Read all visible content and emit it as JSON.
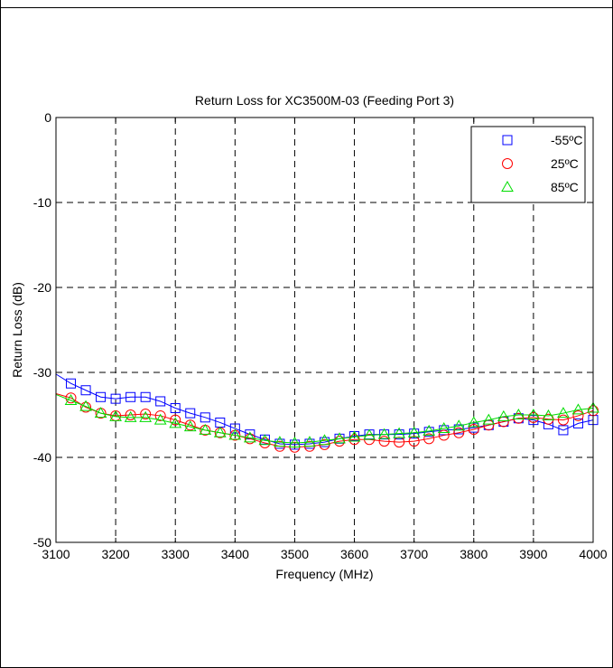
{
  "chart_data": {
    "type": "line",
    "title": "Return Loss for XC3500M-03 (Feeding Port 3)",
    "xlabel": "Frequency (MHz)",
    "ylabel": "Return Loss (dB)",
    "xlim": [
      3100,
      4000
    ],
    "ylim": [
      -50,
      0
    ],
    "xticks": [
      3100,
      3200,
      3300,
      3400,
      3500,
      3600,
      3700,
      3800,
      3900,
      4000
    ],
    "yticks": [
      0,
      -10,
      -20,
      -30,
      -40,
      -50
    ],
    "grid": true,
    "legend_position": "top-right",
    "series": [
      {
        "name": "-55ºC",
        "color": "#0000ff",
        "marker": "square",
        "x": [
          3100,
          3125,
          3150,
          3175,
          3200,
          3225,
          3250,
          3275,
          3300,
          3325,
          3350,
          3375,
          3400,
          3425,
          3450,
          3475,
          3500,
          3525,
          3550,
          3575,
          3600,
          3625,
          3650,
          3675,
          3700,
          3725,
          3750,
          3775,
          3800,
          3825,
          3850,
          3875,
          3900,
          3925,
          3950,
          3975,
          4000
        ],
        "values": [
          -30.2,
          -31.3,
          -32.1,
          -32.9,
          -33.1,
          -32.9,
          -32.9,
          -33.4,
          -34.2,
          -34.8,
          -35.3,
          -35.9,
          -36.6,
          -37.3,
          -37.9,
          -38.4,
          -38.5,
          -38.4,
          -38.2,
          -37.8,
          -37.5,
          -37.3,
          -37.3,
          -37.3,
          -37.2,
          -37.0,
          -36.8,
          -36.7,
          -36.5,
          -36.2,
          -35.8,
          -35.4,
          -35.6,
          -36.1,
          -36.8,
          -36.0,
          -35.6
        ]
      },
      {
        "name": "25ºC",
        "color": "#ff0000",
        "marker": "circle",
        "x": [
          3100,
          3125,
          3150,
          3175,
          3200,
          3225,
          3250,
          3275,
          3300,
          3325,
          3350,
          3375,
          3400,
          3425,
          3450,
          3475,
          3500,
          3525,
          3550,
          3575,
          3600,
          3625,
          3650,
          3675,
          3700,
          3725,
          3750,
          3775,
          3800,
          3825,
          3850,
          3875,
          3900,
          3925,
          3950,
          3975,
          4000
        ],
        "values": [
          -32.5,
          -33.0,
          -34.1,
          -34.8,
          -35.1,
          -35.0,
          -34.9,
          -35.1,
          -35.6,
          -36.2,
          -36.8,
          -37.1,
          -37.4,
          -37.8,
          -38.3,
          -38.7,
          -38.8,
          -38.7,
          -38.5,
          -38.1,
          -37.9,
          -37.9,
          -38.1,
          -38.2,
          -38.1,
          -37.8,
          -37.4,
          -37.1,
          -36.7,
          -36.2,
          -35.8,
          -35.4,
          -35.3,
          -35.5,
          -35.6,
          -35.1,
          -34.5
        ]
      },
      {
        "name": "85ºC",
        "color": "#00dd00",
        "marker": "triangle",
        "x": [
          3100,
          3125,
          3150,
          3175,
          3200,
          3225,
          3250,
          3275,
          3300,
          3325,
          3350,
          3375,
          3400,
          3425,
          3450,
          3475,
          3500,
          3525,
          3550,
          3575,
          3600,
          3625,
          3650,
          3675,
          3700,
          3725,
          3750,
          3775,
          3800,
          3825,
          3850,
          3875,
          3900,
          3925,
          3950,
          3975,
          4000
        ],
        "values": [
          -32.6,
          -33.3,
          -34.0,
          -34.8,
          -35.2,
          -35.3,
          -35.3,
          -35.6,
          -36.0,
          -36.4,
          -36.8,
          -37.1,
          -37.4,
          -37.7,
          -38.0,
          -38.2,
          -38.3,
          -38.2,
          -38.0,
          -37.8,
          -37.6,
          -37.4,
          -37.3,
          -37.2,
          -37.1,
          -36.9,
          -36.6,
          -36.3,
          -35.9,
          -35.6,
          -35.2,
          -35.0,
          -35.0,
          -35.1,
          -34.8,
          -34.4,
          -34.2
        ]
      }
    ]
  }
}
